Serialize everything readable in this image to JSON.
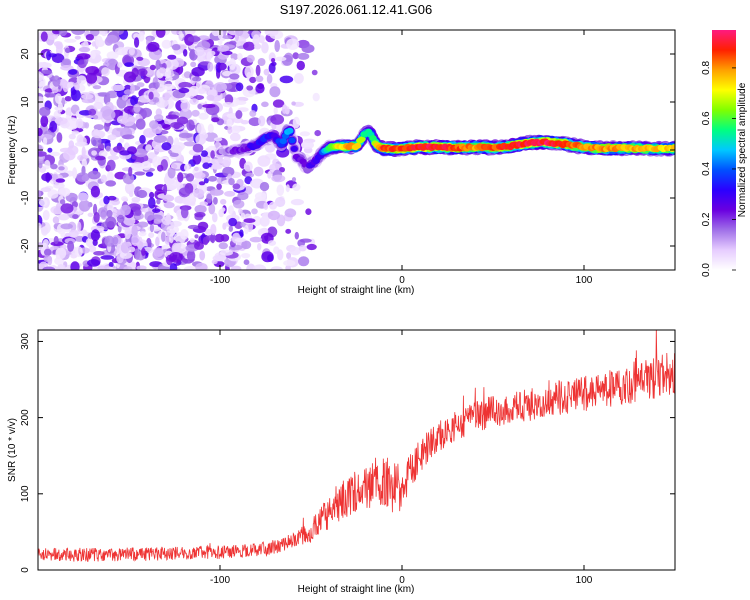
{
  "title": "S197.2026.061.12.41.G06",
  "chart_data": [
    {
      "type": "heatmap",
      "xlabel": "Height of straight line (km)",
      "ylabel": "Frequency (Hz)",
      "xlim": [
        -200,
        150
      ],
      "ylim": [
        -25,
        25
      ],
      "xticks": [
        -100,
        0,
        100
      ],
      "xtick_labels": [
        "-100",
        "0",
        "100"
      ],
      "yticks": [
        -20,
        -10,
        0,
        10,
        20
      ],
      "ytick_labels": [
        "-20",
        "-10",
        "0",
        "10",
        "20"
      ],
      "colorbar": {
        "label": "Normalized spectral amplitude",
        "range": [
          0,
          0.95
        ],
        "ticks": [
          0,
          0.2,
          0.4,
          0.6,
          0.8
        ],
        "tick_labels": [
          "0.0",
          "0.2",
          "0.4",
          "0.6",
          "0.8"
        ],
        "colormap": [
          "#ffffff",
          "#e6ccff",
          "#a070e8",
          "#6a00e0",
          "#2b00ff",
          "#0050ff",
          "#00c8ff",
          "#00ff80",
          "#80ff00",
          "#ffff00",
          "#ffa000",
          "#ff2000",
          "#ff1a80"
        ]
      },
      "noise_x_range": [
        -200,
        -45
      ],
      "signal_trace": {
        "x": [
          -100,
          -90,
          -80,
          -75,
          -70,
          -66,
          -62,
          -58,
          -55,
          -52,
          -50,
          -48,
          -45,
          -40,
          -35,
          -30,
          -25,
          -20,
          -18,
          -15,
          -12,
          -10,
          -5,
          0,
          10,
          20,
          30,
          40,
          50,
          60,
          70,
          75,
          80,
          85,
          90,
          100,
          110,
          120,
          130,
          140,
          150
        ],
        "y": [
          -0.5,
          0,
          1,
          2.5,
          3,
          1,
          4.5,
          -1.5,
          -2,
          -4,
          -3,
          -2.5,
          -1,
          0.5,
          0.8,
          0.7,
          0.8,
          3.5,
          4,
          1.5,
          0.5,
          0.3,
          0.2,
          0.3,
          0.6,
          0.6,
          0.5,
          0.6,
          0.5,
          0.8,
          1.5,
          1.6,
          1.6,
          1.4,
          1.2,
          0.6,
          0.3,
          0.4,
          0.3,
          0.3,
          0.3
        ],
        "peak_amplitude": [
          0.15,
          0.2,
          0.3,
          0.35,
          0.3,
          0.4,
          0.45,
          0.2,
          0.25,
          0.2,
          0.3,
          0.25,
          0.3,
          0.55,
          0.7,
          0.8,
          0.75,
          0.55,
          0.5,
          0.65,
          0.8,
          0.85,
          0.85,
          0.85,
          0.9,
          0.9,
          0.85,
          0.8,
          0.85,
          0.88,
          0.9,
          0.92,
          0.92,
          0.9,
          0.85,
          0.8,
          0.8,
          0.78,
          0.78,
          0.75,
          0.75
        ]
      }
    },
    {
      "type": "line",
      "xlabel": "Height of straight line (km)",
      "ylabel": "SNR (10 * v/v)",
      "xlim": [
        -200,
        150
      ],
      "ylim": [
        0,
        315
      ],
      "xticks": [
        -100,
        0,
        100
      ],
      "xtick_labels": [
        "-100",
        "0",
        "100"
      ],
      "yticks": [
        0,
        100,
        200,
        300
      ],
      "ytick_labels": [
        "0",
        "100",
        "200",
        "300"
      ],
      "color": "#ee3333",
      "series": [
        {
          "name": "SNR",
          "x": [
            -200,
            -180,
            -160,
            -140,
            -120,
            -100,
            -80,
            -70,
            -60,
            -55,
            -50,
            -45,
            -42,
            -40,
            -35,
            -30,
            -25,
            -20,
            -15,
            -10,
            -5,
            0,
            5,
            10,
            15,
            20,
            30,
            40,
            50,
            60,
            70,
            80,
            90,
            100,
            110,
            120,
            130,
            140,
            150
          ],
          "values": [
            20,
            20,
            20,
            21,
            22,
            23,
            26,
            30,
            38,
            45,
            50,
            65,
            72,
            75,
            90,
            95,
            98,
            105,
            115,
            120,
            110,
            108,
            130,
            150,
            165,
            175,
            190,
            200,
            207,
            213,
            217,
            222,
            228,
            232,
            237,
            242,
            248,
            252,
            258
          ],
          "noise_amplitude": [
            9,
            9,
            9,
            9,
            9,
            9,
            9,
            10,
            10,
            12,
            14,
            18,
            25,
            20,
            28,
            28,
            28,
            30,
            32,
            40,
            35,
            30,
            24,
            22,
            22,
            20,
            20,
            20,
            22,
            22,
            22,
            22,
            24,
            24,
            24,
            26,
            28,
            30,
            30
          ]
        }
      ]
    }
  ]
}
